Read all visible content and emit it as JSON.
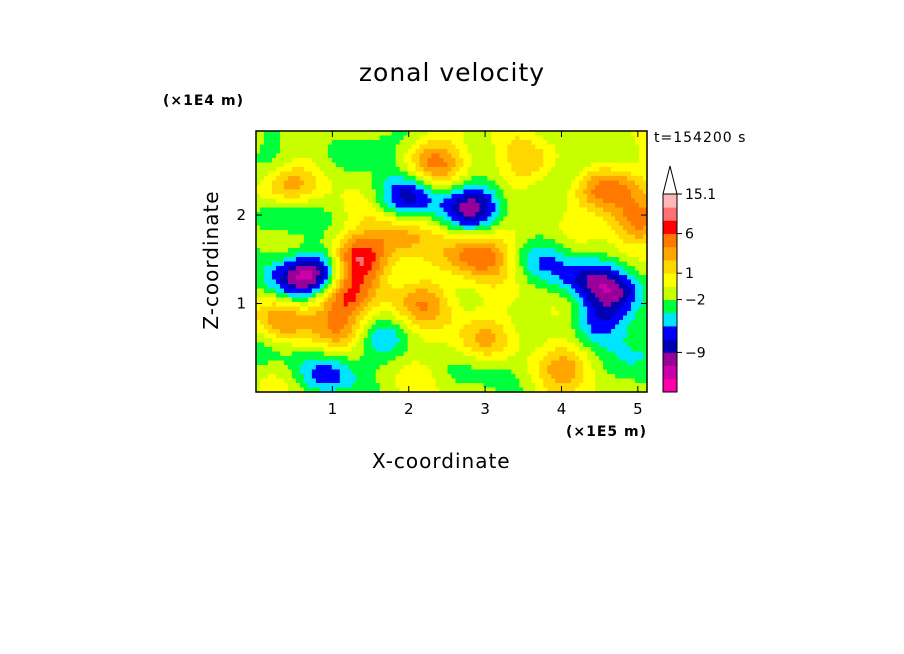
{
  "chart_data": {
    "type": "heatmap",
    "title": "zonal velocity",
    "xlabel": "X-coordinate",
    "ylabel": "Z-coordinate",
    "x_unit": "(×1E5 m)",
    "y_unit": "(×1E4 m)",
    "annotation": "t=154200 s",
    "x_ticks": [
      "1",
      "2",
      "3",
      "4",
      "5"
    ],
    "y_ticks": [
      "1",
      "2"
    ],
    "xlim": [
      0,
      5.12
    ],
    "ylim": [
      0,
      2.95
    ],
    "colorbar": {
      "labels": [
        "15.1",
        "6",
        "1",
        "−2",
        "−9"
      ],
      "colors": [
        "#ff00a8",
        "#cc00aa",
        "#990099",
        "#0000b4",
        "#0000ff",
        "#00e5ff",
        "#00ff3c",
        "#c8ff00",
        "#ffff00",
        "#ffd700",
        "#ffa500",
        "#ff7800",
        "#ff0000",
        "#ff7070",
        "#ffb8b8"
      ],
      "extend": "max"
    },
    "features": [
      {
        "x": 0.55,
        "y": 1.25,
        "v": -9
      },
      {
        "x": 0.9,
        "y": 1.4,
        "v": -9
      },
      {
        "x": 0.4,
        "y": 2.0,
        "v": -5
      },
      {
        "x": 0.2,
        "y": 2.6,
        "v": -3
      },
      {
        "x": 1.0,
        "y": 0.2,
        "v": -6
      },
      {
        "x": 1.55,
        "y": 0.6,
        "v": -5
      },
      {
        "x": 2.0,
        "y": 2.2,
        "v": -7
      },
      {
        "x": 2.85,
        "y": 2.1,
        "v": -10
      },
      {
        "x": 4.3,
        "y": 1.3,
        "v": -6
      },
      {
        "x": 4.75,
        "y": 1.15,
        "v": -8
      },
      {
        "x": 3.8,
        "y": 1.5,
        "v": -4
      },
      {
        "x": 4.1,
        "y": 2.5,
        "v": -5
      },
      {
        "x": 4.5,
        "y": 0.75,
        "v": -6
      },
      {
        "x": 4.95,
        "y": 0.4,
        "v": -5
      },
      {
        "x": 1.6,
        "y": 2.75,
        "v": -4
      },
      {
        "x": 3.1,
        "y": 0.25,
        "v": -3
      },
      {
        "x": 0.1,
        "y": 0.45,
        "v": -3
      },
      {
        "x": 4.6,
        "y": 2.3,
        "v": 8
      },
      {
        "x": 2.9,
        "y": 1.55,
        "v": 8
      },
      {
        "x": 1.1,
        "y": 1.1,
        "v": 9
      },
      {
        "x": 1.3,
        "y": 1.5,
        "v": 11
      },
      {
        "x": 1.1,
        "y": 0.7,
        "v": 6
      },
      {
        "x": 0.35,
        "y": 2.3,
        "v": 6
      },
      {
        "x": 2.35,
        "y": 2.6,
        "v": 6
      },
      {
        "x": 3.7,
        "y": 2.55,
        "v": 5
      },
      {
        "x": 2.2,
        "y": 1.0,
        "v": 5
      },
      {
        "x": 3.0,
        "y": 0.6,
        "v": 4
      },
      {
        "x": 4.1,
        "y": 0.3,
        "v": 5
      },
      {
        "x": 4.95,
        "y": 1.9,
        "v": 6
      },
      {
        "x": 0.3,
        "y": 0.8,
        "v": 5
      },
      {
        "x": 1.85,
        "y": 1.75,
        "v": 5
      }
    ]
  }
}
